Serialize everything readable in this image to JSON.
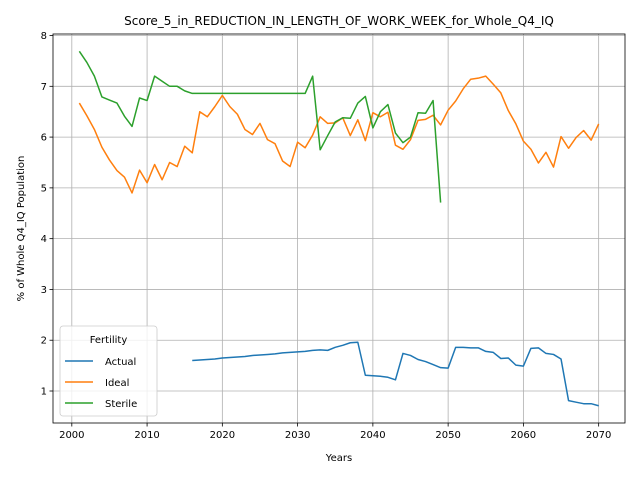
{
  "chart_data": {
    "type": "line",
    "title": "Score_5_in_REDUCTION_IN_LENGTH_OF_WORK_WEEK_for_Whole_Q4_IQ",
    "xlabel": "Years",
    "ylabel": "% of Whole Q4_IQ Population",
    "xlim": [
      1997.5,
      2073.5
    ],
    "ylim": [
      0.37,
      8.03
    ],
    "xticks": [
      2000,
      2010,
      2020,
      2030,
      2040,
      2050,
      2060,
      2070
    ],
    "yticks": [
      1,
      2,
      3,
      4,
      5,
      6,
      7,
      8
    ],
    "grid": true,
    "legend": {
      "title": "Fertility",
      "position": "lower-left"
    },
    "series": [
      {
        "name": "Actual",
        "color": "#1f77b4",
        "x": [
          2016,
          2017,
          2018,
          2019,
          2020,
          2021,
          2022,
          2023,
          2024,
          2025,
          2026,
          2027,
          2028,
          2029,
          2030,
          2031,
          2032,
          2033,
          2034,
          2035,
          2036,
          2037,
          2038,
          2039,
          2040,
          2041,
          2042,
          2043,
          2044,
          2045,
          2046,
          2047,
          2048,
          2049,
          2050,
          2051,
          2052,
          2053,
          2054,
          2055,
          2056,
          2057,
          2058,
          2059,
          2060,
          2061,
          2062,
          2063,
          2064,
          2065,
          2066,
          2067,
          2068,
          2069,
          2070
        ],
        "y": [
          1.6,
          1.61,
          1.62,
          1.63,
          1.65,
          1.66,
          1.67,
          1.68,
          1.7,
          1.71,
          1.72,
          1.73,
          1.75,
          1.76,
          1.77,
          1.78,
          1.8,
          1.81,
          1.8,
          1.86,
          1.9,
          1.95,
          1.96,
          1.31,
          1.3,
          1.29,
          1.27,
          1.22,
          1.74,
          1.7,
          1.62,
          1.58,
          1.52,
          1.46,
          1.45,
          1.86,
          1.86,
          1.85,
          1.85,
          1.78,
          1.76,
          1.64,
          1.65,
          1.51,
          1.49,
          1.84,
          1.85,
          1.74,
          1.72,
          1.63,
          0.81,
          0.78,
          0.75,
          0.75,
          0.71
        ]
      },
      {
        "name": "Ideal",
        "color": "#ff7f0e",
        "x": [
          2001,
          2002,
          2003,
          2004,
          2005,
          2006,
          2007,
          2008,
          2009,
          2010,
          2011,
          2012,
          2013,
          2014,
          2015,
          2016,
          2017,
          2018,
          2019,
          2020,
          2021,
          2022,
          2023,
          2024,
          2025,
          2026,
          2027,
          2028,
          2029,
          2030,
          2031,
          2032,
          2033,
          2034,
          2035,
          2036,
          2037,
          2038,
          2039,
          2040,
          2041,
          2042,
          2043,
          2044,
          2045,
          2046,
          2047,
          2048,
          2049,
          2050,
          2051,
          2052,
          2053,
          2054,
          2055,
          2056,
          2057,
          2058,
          2059,
          2060,
          2061,
          2062,
          2063,
          2064,
          2065,
          2066,
          2067,
          2068,
          2069,
          2070
        ],
        "y": [
          6.67,
          6.42,
          6.15,
          5.8,
          5.55,
          5.34,
          5.21,
          4.9,
          5.35,
          5.1,
          5.46,
          5.16,
          5.5,
          5.42,
          5.82,
          5.69,
          6.5,
          6.4,
          6.6,
          6.82,
          6.6,
          6.45,
          6.15,
          6.05,
          6.27,
          5.95,
          5.87,
          5.53,
          5.42,
          5.9,
          5.79,
          6.04,
          6.4,
          6.27,
          6.28,
          6.38,
          6.03,
          6.34,
          5.93,
          6.48,
          6.4,
          6.49,
          5.84,
          5.76,
          5.95,
          6.33,
          6.35,
          6.43,
          6.24,
          6.53,
          6.71,
          6.95,
          7.14,
          7.16,
          7.2,
          7.04,
          6.87,
          6.52,
          6.26,
          5.92,
          5.76,
          5.49,
          5.7,
          5.41,
          6.01,
          5.78,
          5.99,
          6.13,
          5.94,
          6.26
        ]
      },
      {
        "name": "Sterile",
        "color": "#2ca02c",
        "x": [
          2001,
          2002,
          2003,
          2004,
          2005,
          2006,
          2007,
          2008,
          2009,
          2010,
          2011,
          2012,
          2013,
          2014,
          2015,
          2016,
          2017,
          2018,
          2019,
          2020,
          2021,
          2022,
          2023,
          2024,
          2025,
          2026,
          2027,
          2028,
          2029,
          2030,
          2031,
          2032,
          2033,
          2034,
          2035,
          2036,
          2037,
          2038,
          2039,
          2040,
          2041,
          2042,
          2043,
          2044,
          2045,
          2046,
          2047,
          2048,
          2049
        ],
        "y": [
          7.69,
          7.47,
          7.2,
          6.79,
          6.73,
          6.67,
          6.41,
          6.21,
          6.77,
          6.72,
          7.2,
          7.1,
          7.0,
          7.0,
          6.91,
          6.86,
          6.86,
          6.86,
          6.86,
          6.86,
          6.86,
          6.86,
          6.86,
          6.86,
          6.86,
          6.86,
          6.86,
          6.86,
          6.86,
          6.86,
          6.86,
          7.2,
          5.75,
          6.03,
          6.3,
          6.38,
          6.37,
          6.67,
          6.8,
          6.18,
          6.5,
          6.64,
          6.08,
          5.89,
          6.0,
          6.48,
          6.47,
          6.72,
          4.71
        ]
      }
    ]
  }
}
